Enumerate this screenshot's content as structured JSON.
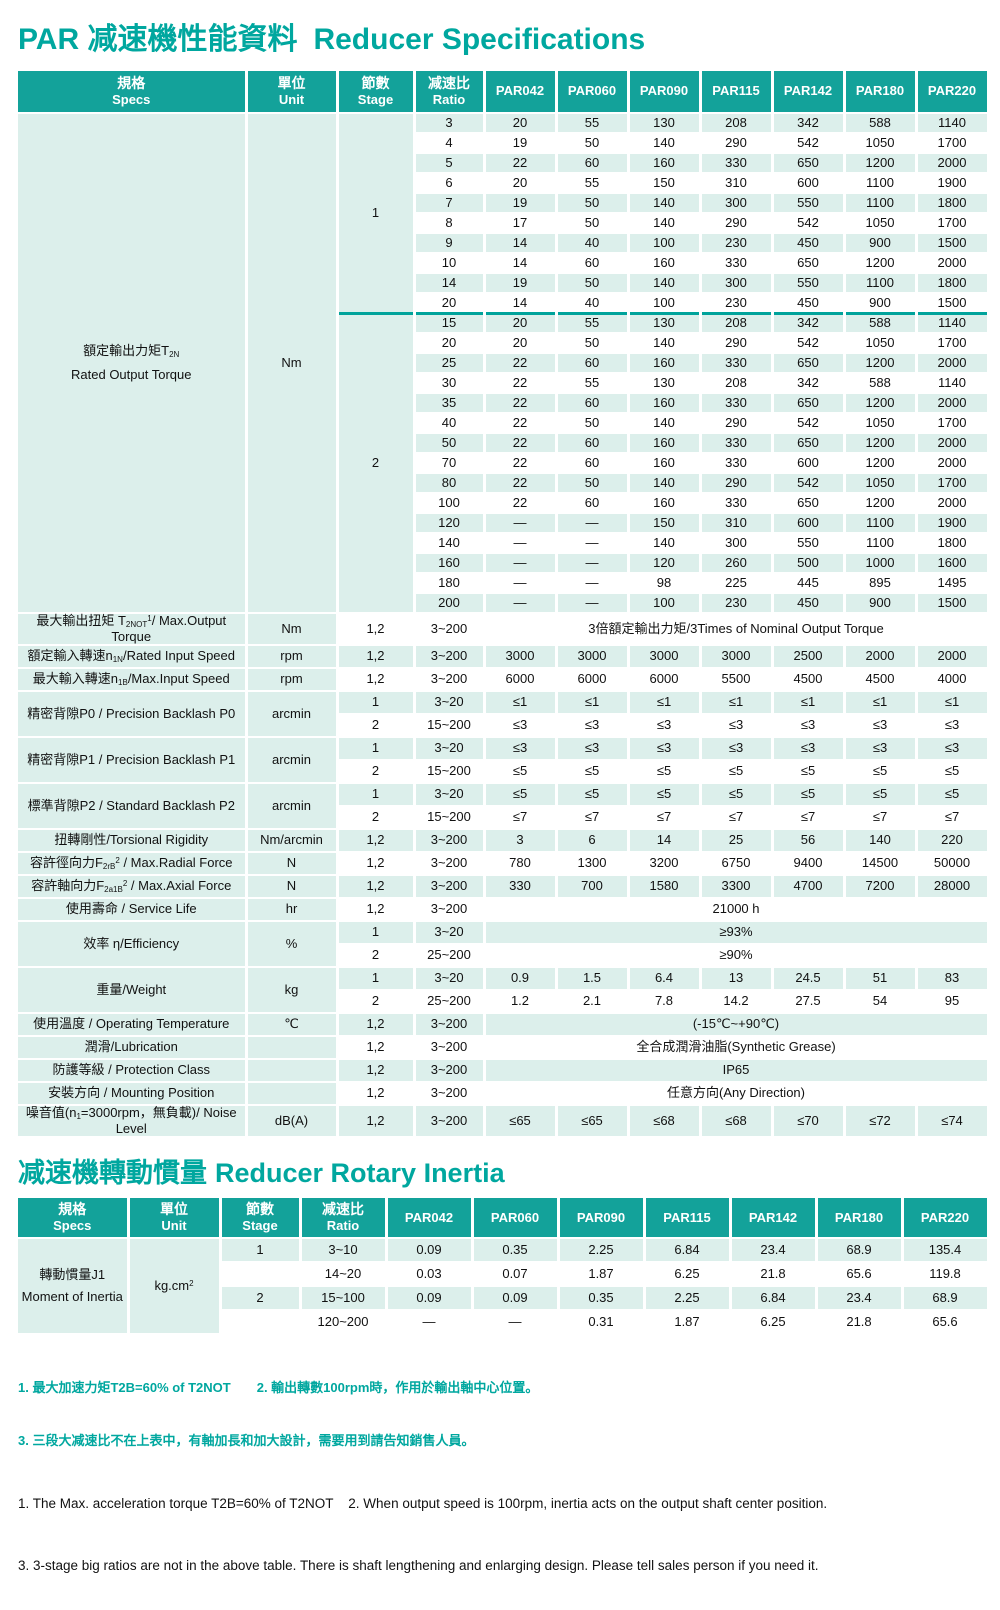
{
  "page": {
    "title1_zh": "PAR 减速機性能資料",
    "title1_en": "Reducer Specifications",
    "title2_zh": "减速機轉動慣量",
    "title2_en": "Reducer Rotary Inertia"
  },
  "colors": {
    "header_teal": "#13a29a",
    "title_teal": "#00a79f",
    "divider_teal": "#00a39b",
    "row_light": "#dcefeb"
  },
  "spec_table": {
    "headers": [
      {
        "zh": "規格",
        "en": "Specs"
      },
      {
        "zh": "單位",
        "en": "Unit"
      },
      {
        "zh": "節數",
        "en": "Stage"
      },
      {
        "zh": "减速比",
        "en": "Ratio"
      }
    ],
    "models": [
      "PAR042",
      "PAR060",
      "PAR090",
      "PAR115",
      "PAR142",
      "PAR180",
      "PAR220"
    ],
    "torque": {
      "label_html": "額定輸出力矩T<sub>2N</sub>",
      "label_en": "Rated Output Torque",
      "unit": "Nm",
      "stages": [
        {
          "stage": "1",
          "rows": [
            [
              "3",
              "20",
              "55",
              "130",
              "208",
              "342",
              "588",
              "1140"
            ],
            [
              "4",
              "19",
              "50",
              "140",
              "290",
              "542",
              "1050",
              "1700"
            ],
            [
              "5",
              "22",
              "60",
              "160",
              "330",
              "650",
              "1200",
              "2000"
            ],
            [
              "6",
              "20",
              "55",
              "150",
              "310",
              "600",
              "1100",
              "1900"
            ],
            [
              "7",
              "19",
              "50",
              "140",
              "300",
              "550",
              "1100",
              "1800"
            ],
            [
              "8",
              "17",
              "50",
              "140",
              "290",
              "542",
              "1050",
              "1700"
            ],
            [
              "9",
              "14",
              "40",
              "100",
              "230",
              "450",
              "900",
              "1500"
            ],
            [
              "10",
              "14",
              "60",
              "160",
              "330",
              "650",
              "1200",
              "2000"
            ],
            [
              "14",
              "19",
              "50",
              "140",
              "300",
              "550",
              "1100",
              "1800"
            ],
            [
              "20",
              "14",
              "40",
              "100",
              "230",
              "450",
              "900",
              "1500"
            ]
          ]
        },
        {
          "stage": "2",
          "rows": [
            [
              "15",
              "20",
              "55",
              "130",
              "208",
              "342",
              "588",
              "1140"
            ],
            [
              "20",
              "20",
              "50",
              "140",
              "290",
              "542",
              "1050",
              "1700"
            ],
            [
              "25",
              "22",
              "60",
              "160",
              "330",
              "650",
              "1200",
              "2000"
            ],
            [
              "30",
              "22",
              "55",
              "130",
              "208",
              "342",
              "588",
              "1140"
            ],
            [
              "35",
              "22",
              "60",
              "160",
              "330",
              "650",
              "1200",
              "2000"
            ],
            [
              "40",
              "22",
              "50",
              "140",
              "290",
              "542",
              "1050",
              "1700"
            ],
            [
              "50",
              "22",
              "60",
              "160",
              "330",
              "650",
              "1200",
              "2000"
            ],
            [
              "70",
              "22",
              "60",
              "160",
              "330",
              "600",
              "1200",
              "2000"
            ],
            [
              "80",
              "22",
              "50",
              "140",
              "290",
              "542",
              "1050",
              "1700"
            ],
            [
              "100",
              "22",
              "60",
              "160",
              "330",
              "650",
              "1200",
              "2000"
            ],
            [
              "120",
              "—",
              "—",
              "150",
              "310",
              "600",
              "1100",
              "1900"
            ],
            [
              "140",
              "—",
              "—",
              "140",
              "300",
              "550",
              "1100",
              "1800"
            ],
            [
              "160",
              "—",
              "—",
              "120",
              "260",
              "500",
              "1000",
              "1600"
            ],
            [
              "180",
              "—",
              "—",
              "98",
              "225",
              "445",
              "895",
              "1495"
            ],
            [
              "200",
              "—",
              "—",
              "100",
              "230",
              "450",
              "900",
              "1500"
            ]
          ]
        }
      ]
    },
    "spec_rows": [
      {
        "label_html": "最大輸出扭矩 T<sub>2NOT</sub><sup>1</sup>/ Max.Output Torque",
        "unit": "Nm",
        "rows": [
          {
            "stage": "1,2",
            "ratio": "3~200",
            "span": "3倍額定輸出力矩/3Times of Nominal Output Torque"
          }
        ]
      },
      {
        "label_html": "額定輸入轉速n<sub>1N</sub>/Rated Input Speed",
        "unit": "rpm",
        "rows": [
          {
            "stage": "1,2",
            "ratio": "3~200",
            "values": [
              "3000",
              "3000",
              "3000",
              "3000",
              "2500",
              "2000",
              "2000"
            ]
          }
        ]
      },
      {
        "label_html": "最大輸入轉速n<sub>1B</sub>/Max.Input Speed",
        "unit": "rpm",
        "rows": [
          {
            "stage": "1,2",
            "ratio": "3~200",
            "values": [
              "6000",
              "6000",
              "6000",
              "5500",
              "4500",
              "4500",
              "4000"
            ]
          }
        ]
      },
      {
        "label_html": "精密背隙P0 / Precision Backlash P0",
        "unit": "arcmin",
        "rows": [
          {
            "stage": "1",
            "ratio": "3~20",
            "values": [
              "≤1",
              "≤1",
              "≤1",
              "≤1",
              "≤1",
              "≤1",
              "≤1"
            ]
          },
          {
            "stage": "2",
            "ratio": "15~200",
            "values": [
              "≤3",
              "≤3",
              "≤3",
              "≤3",
              "≤3",
              "≤3",
              "≤3"
            ]
          }
        ]
      },
      {
        "label_html": "精密背隙P1 / Precision Backlash P1",
        "unit": "arcmin",
        "rows": [
          {
            "stage": "1",
            "ratio": "3~20",
            "values": [
              "≤3",
              "≤3",
              "≤3",
              "≤3",
              "≤3",
              "≤3",
              "≤3"
            ]
          },
          {
            "stage": "2",
            "ratio": "15~200",
            "values": [
              "≤5",
              "≤5",
              "≤5",
              "≤5",
              "≤5",
              "≤5",
              "≤5"
            ]
          }
        ]
      },
      {
        "label_html": "標準背隙P2 / Standard Backlash P2",
        "unit": "arcmin",
        "rows": [
          {
            "stage": "1",
            "ratio": "3~20",
            "values": [
              "≤5",
              "≤5",
              "≤5",
              "≤5",
              "≤5",
              "≤5",
              "≤5"
            ]
          },
          {
            "stage": "2",
            "ratio": "15~200",
            "values": [
              "≤7",
              "≤7",
              "≤7",
              "≤7",
              "≤7",
              "≤7",
              "≤7"
            ]
          }
        ]
      },
      {
        "label_html": "扭轉剛性/Torsional Rigidity",
        "unit": "Nm/arcmin",
        "rows": [
          {
            "stage": "1,2",
            "ratio": "3~200",
            "values": [
              "3",
              "6",
              "14",
              "25",
              "56",
              "140",
              "220"
            ]
          }
        ]
      },
      {
        "label_html": "容許徑向力F<sub>2rB</sub><sup>2</sup> / Max.Radial Force",
        "unit": "N",
        "rows": [
          {
            "stage": "1,2",
            "ratio": "3~200",
            "values": [
              "780",
              "1300",
              "3200",
              "6750",
              "9400",
              "14500",
              "50000"
            ]
          }
        ]
      },
      {
        "label_html": "容許軸向力F<sub>2a1B</sub><sup>2</sup> / Max.Axial Force",
        "unit": "N",
        "rows": [
          {
            "stage": "1,2",
            "ratio": "3~200",
            "values": [
              "330",
              "700",
              "1580",
              "3300",
              "4700",
              "7200",
              "28000"
            ]
          }
        ]
      },
      {
        "label_html": "使用壽命 / Service Life",
        "unit": "hr",
        "rows": [
          {
            "stage": "1,2",
            "ratio": "3~200",
            "span": "21000 h"
          }
        ]
      },
      {
        "label_html": "效率 η/Efficiency",
        "unit": "%",
        "rows": [
          {
            "stage": "1",
            "ratio": "3~20",
            "span": "≥93%"
          },
          {
            "stage": "2",
            "ratio": "25~200",
            "span": "≥90%"
          }
        ]
      },
      {
        "label_html": "重量/Weight",
        "unit": "kg",
        "rows": [
          {
            "stage": "1",
            "ratio": "3~20",
            "values": [
              "0.9",
              "1.5",
              "6.4",
              "13",
              "24.5",
              "51",
              "83"
            ]
          },
          {
            "stage": "2",
            "ratio": "25~200",
            "values": [
              "1.2",
              "2.1",
              "7.8",
              "14.2",
              "27.5",
              "54",
              "95"
            ]
          }
        ]
      },
      {
        "label_html": "使用溫度 / Operating Temperature",
        "unit": "℃",
        "rows": [
          {
            "stage": "1,2",
            "ratio": "3~200",
            "span": "(-15℃~+90℃)"
          }
        ]
      },
      {
        "label_html": "潤滑/Lubrication",
        "unit": "",
        "rows": [
          {
            "stage": "1,2",
            "ratio": "3~200",
            "span": "全合成潤滑油脂(Synthetic Grease)"
          }
        ]
      },
      {
        "label_html": "防護等級 / Protection Class",
        "unit": "",
        "rows": [
          {
            "stage": "1,2",
            "ratio": "3~200",
            "span": "IP65"
          }
        ]
      },
      {
        "label_html": "安裝方向 / Mounting Position",
        "unit": "",
        "rows": [
          {
            "stage": "1,2",
            "ratio": "3~200",
            "span": "任意方向(Any Direction)"
          }
        ]
      },
      {
        "label_html": "噪音值(n<sub>1</sub>=3000rpm，無負載)/ Noise Level",
        "unit": "dB(A)",
        "rows": [
          {
            "stage": "1,2",
            "ratio": "3~200",
            "values": [
              "≤65",
              "≤65",
              "≤68",
              "≤68",
              "≤70",
              "≤72",
              "≤74"
            ]
          }
        ]
      }
    ]
  },
  "inertia_table": {
    "label_html": "轉動慣量J1",
    "label_en": "Moment of Inertia",
    "unit_html": "kg.cm<sup>2</sup>",
    "rows": [
      {
        "stage": "1",
        "ratio": "3~10",
        "values": [
          "0.09",
          "0.35",
          "2.25",
          "6.84",
          "23.4",
          "68.9",
          "135.4"
        ]
      },
      {
        "stage": "",
        "ratio": "14~20",
        "values": [
          "0.03",
          "0.07",
          "1.87",
          "6.25",
          "21.8",
          "65.6",
          "119.8"
        ],
        "divider_after": true
      },
      {
        "stage": "2",
        "ratio": "15~100",
        "values": [
          "0.09",
          "0.09",
          "0.35",
          "2.25",
          "6.84",
          "23.4",
          "68.9"
        ]
      },
      {
        "stage": "",
        "ratio": "120~200",
        "values": [
          "—",
          "—",
          "0.31",
          "1.87",
          "6.25",
          "21.8",
          "65.6"
        ]
      }
    ]
  },
  "footnotes": {
    "zh": [
      "1. 最大加速力矩T2B=60% of T2NOT　　2. 輸出轉數100rpm時，作用於輸出軸中心位置。",
      "3. 三段大减速比不在上表中，有軸加長和加大設計，需要用到請告知銷售人員。"
    ],
    "en": [
      "1. The Max. acceleration torque T2B=60% of T2NOT    2. When output speed is 100rpm, inertia acts on the output shaft center position.",
      "3. 3-stage big ratios are not in the above table. There is shaft lengthening and enlarging design. Please tell sales person if you need it."
    ]
  }
}
